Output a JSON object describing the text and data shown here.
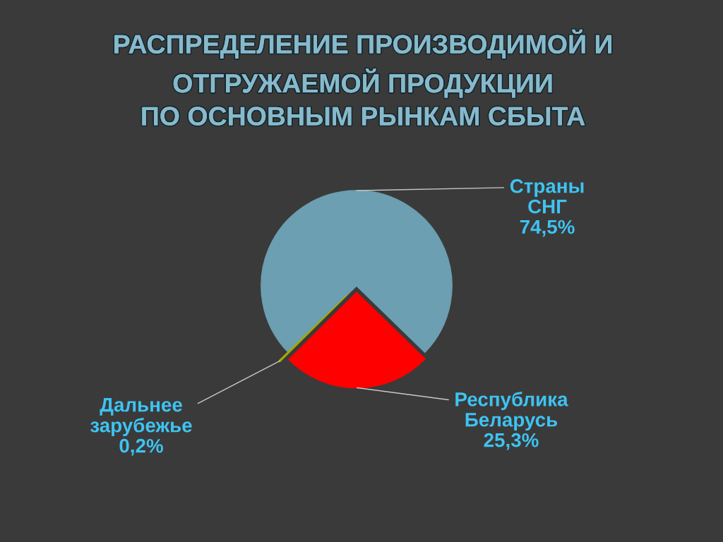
{
  "chart_data": {
    "type": "pie",
    "title": "РАСПРЕДЕЛЕНИЕ ПРОИЗВОДИМОЙ И\nОТГРУЖАЕМОЙ ПРОДУКЦИИ\nПО ОСНОВНЫМ РЫНКАМ СБЫТА",
    "categories": [
      "Страны СНГ",
      "Республика Беларусь",
      "Дальнее зарубежье"
    ],
    "values": [
      74.5,
      25.3,
      0.2
    ],
    "value_labels": [
      "74,5%",
      "25,3%",
      "0,2%"
    ],
    "colors": [
      "#6b9fb1",
      "#ff0000",
      "#a8a800"
    ]
  }
}
